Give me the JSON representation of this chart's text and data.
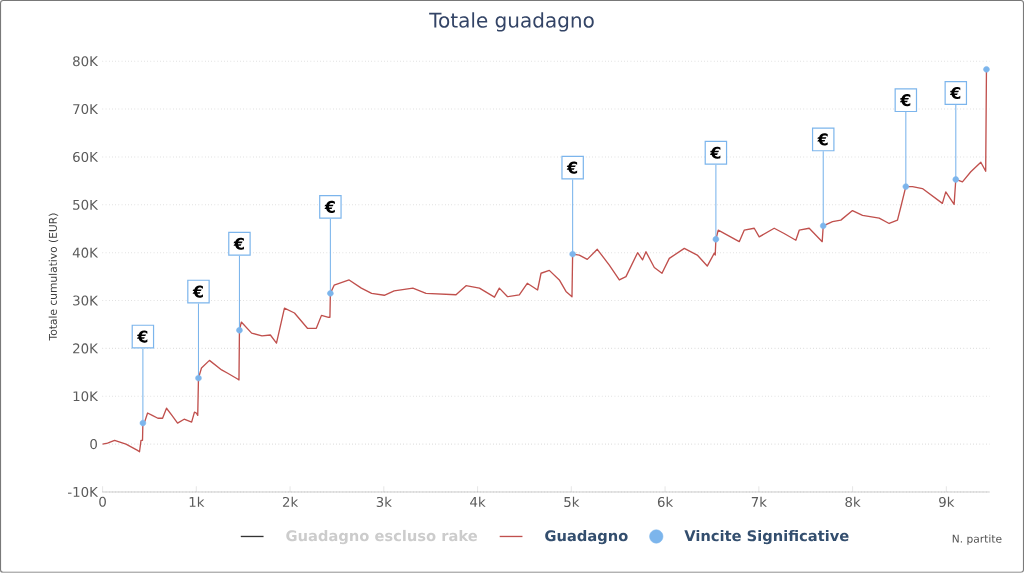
{
  "chart_data": {
    "type": "line",
    "title": "Totale guadagno",
    "xlabel": "N. partite",
    "ylabel": "Totale cumulativo (EUR)",
    "xlim": [
      0,
      9460
    ],
    "ylim": [
      -10000,
      80000
    ],
    "xticks": [
      0,
      {
        "value": 1000,
        "label": "1k"
      },
      {
        "value": 2000,
        "label": "2k"
      },
      {
        "value": 3000,
        "label": "3k"
      },
      {
        "value": 4000,
        "label": "4k"
      },
      {
        "value": 5000,
        "label": "5k"
      },
      {
        "value": 6000,
        "label": "6k"
      },
      {
        "value": 7000,
        "label": "7k"
      },
      {
        "value": 8000,
        "label": "8k"
      },
      {
        "value": 9000,
        "label": "9k"
      }
    ],
    "yticks": [
      {
        "value": -10000,
        "label": "-10K"
      },
      0,
      {
        "value": 10000,
        "label": "10K"
      },
      {
        "value": 20000,
        "label": "20K"
      },
      {
        "value": 30000,
        "label": "30K"
      },
      {
        "value": 40000,
        "label": "40K"
      },
      {
        "value": 50000,
        "label": "50K"
      },
      {
        "value": 60000,
        "label": "60K"
      },
      {
        "value": 70000,
        "label": "70K"
      },
      {
        "value": 80000,
        "label": "80K"
      }
    ],
    "grid": "y",
    "legend": "bottom",
    "series": [
      {
        "name": "Guadagno escluso rake",
        "color": "#333333"
      },
      {
        "name": "Guadagno",
        "color": "#c0504d",
        "marker": "none",
        "x": [
          0,
          53,
          128,
          250,
          373,
          394,
          410,
          426,
          430,
          448,
          480,
          530,
          590,
          640,
          682,
          740,
          800,
          870,
          950,
          980,
          1000,
          1015,
          1023,
          1055,
          1140,
          1270,
          1335,
          1440,
          1455,
          1460,
          1480,
          1590,
          1700,
          1790,
          1855,
          1940,
          2047,
          2185,
          2280,
          2335,
          2410,
          2425,
          2430,
          2470,
          2630,
          2760,
          2870,
          3005,
          3110,
          3310,
          3450,
          3770,
          3877,
          4020,
          4180,
          4232,
          4320,
          4445,
          4530,
          4640,
          4677,
          4765,
          4872,
          4943,
          5007,
          5014,
          5085,
          5170,
          5277,
          5405,
          5512,
          5583,
          5707,
          5760,
          5796,
          5885,
          5967,
          6045,
          6205,
          6343,
          6450,
          6525,
          6535,
          6542,
          6567,
          6791,
          6844,
          6951,
          7004,
          7164,
          7270,
          7395,
          7431,
          7537,
          7676,
          7687,
          7786,
          7875,
          7999,
          8106,
          8284,
          8390,
          8479,
          8515,
          8568,
          8639,
          8745,
          8958,
          8994,
          9083,
          9101,
          9172,
          9261,
          9368,
          9420,
          9428
        ],
        "values": [
          0,
          200,
          800,
          0,
          -1300,
          -1600,
          800,
          800,
          4400,
          4600,
          6500,
          6000,
          5400,
          5400,
          7500,
          6000,
          4400,
          5200,
          4600,
          6700,
          6500,
          6000,
          13800,
          15900,
          17500,
          15500,
          14800,
          13600,
          13400,
          23800,
          25500,
          23200,
          22600,
          22800,
          21100,
          28400,
          27400,
          24200,
          24200,
          26900,
          26500,
          26500,
          31500,
          33200,
          34300,
          32600,
          31500,
          31100,
          32000,
          32600,
          31500,
          31200,
          33100,
          32600,
          30700,
          32600,
          30800,
          31200,
          33600,
          32200,
          35700,
          36300,
          34300,
          31900,
          30800,
          39700,
          39500,
          38600,
          40700,
          37400,
          34300,
          35000,
          40000,
          38500,
          40200,
          36900,
          35700,
          38800,
          40900,
          39500,
          37200,
          39900,
          39500,
          42800,
          44700,
          42300,
          44700,
          45100,
          43300,
          45100,
          44000,
          42600,
          44700,
          45100,
          42300,
          45600,
          46500,
          46800,
          48800,
          47800,
          47200,
          46100,
          46800,
          49600,
          53800,
          53800,
          53400,
          50300,
          52700,
          50100,
          55300,
          54800,
          56900,
          58900,
          57000,
          78300
        ]
      },
      {
        "name": "Vincite Significative",
        "type": "scatter",
        "color": "#7cb5ec",
        "marker": "circle",
        "x": [
          430,
          1023,
          1460,
          2430,
          5014,
          6542,
          7687,
          8568,
          9101,
          9428
        ],
        "values": [
          4400,
          13800,
          23800,
          31500,
          39700,
          42800,
          45600,
          53800,
          55300,
          78300
        ]
      }
    ],
    "annotations": [
      {
        "text": "€",
        "x": 430,
        "y": 4400
      },
      {
        "text": "€",
        "x": 1023,
        "y": 13800
      },
      {
        "text": "€",
        "x": 1460,
        "y": 23800
      },
      {
        "text": "€",
        "x": 2430,
        "y": 31500
      },
      {
        "text": "€",
        "x": 5014,
        "y": 39700
      },
      {
        "text": "€",
        "x": 6542,
        "y": 42800
      },
      {
        "text": "€",
        "x": 7687,
        "y": 45600
      },
      {
        "text": "€",
        "x": 8568,
        "y": 53800
      },
      {
        "text": "€",
        "x": 9101,
        "y": 55300
      }
    ]
  }
}
